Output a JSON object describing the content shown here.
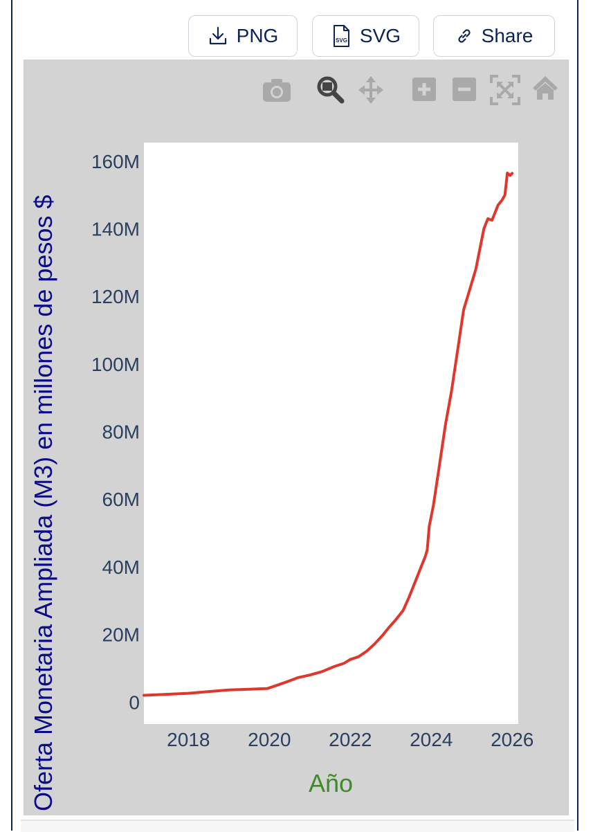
{
  "toolbar": {
    "png_label": "PNG",
    "svg_label": "SVG",
    "svg_icon_text": "SVG",
    "share_label": "Share"
  },
  "modebar": [
    "camera-icon",
    "zoom-icon",
    "pan-icon",
    "zoom-in-icon",
    "zoom-out-icon",
    "autoscale-icon",
    "home-icon"
  ],
  "colors": {
    "line": "#e0362b",
    "plot_bg": "#ffffff",
    "paper_bg": "#d3d3d3",
    "ylabel": "#0b0b8a",
    "xlabel": "#3f8a2a",
    "ticks": "#2a3f5f",
    "brand": "#0c2454"
  },
  "chart_data": {
    "type": "line",
    "title": "",
    "xlabel": "Año",
    "ylabel": "Oferta Monetaria Ampliada (M3) en millones de pesos $",
    "xlim": [
      2016.9,
      2026.15
    ],
    "ylim": [
      -6.5,
      165.5
    ],
    "xticks": [
      2018,
      2020,
      2022,
      2024,
      2026
    ],
    "yticks": [
      0,
      20,
      40,
      60,
      80,
      100,
      120,
      140,
      160
    ],
    "ytick_labels": [
      "0",
      "20M",
      "40M",
      "60M",
      "80M",
      "100M",
      "120M",
      "140M",
      "160M"
    ],
    "y_unit": "millones",
    "grid": false,
    "series": [
      {
        "x": [
          2016.9,
          2017.5,
          2018.0,
          2018.5,
          2019.0,
          2019.5,
          2019.95,
          2020.2,
          2020.5,
          2020.7,
          2021.0,
          2021.3,
          2021.6,
          2021.85,
          2022.0,
          2022.2,
          2022.4,
          2022.6,
          2022.8,
          2022.95,
          2023.1,
          2023.3,
          2023.45,
          2023.6,
          2023.75,
          2023.85,
          2023.9,
          2023.95,
          2024.05,
          2024.2,
          2024.35,
          2024.5,
          2024.65,
          2024.8,
          2024.95,
          2025.1,
          2025.3,
          2025.4,
          2025.5,
          2025.55,
          2025.65,
          2025.75,
          2025.82,
          2025.88,
          2025.95,
          2026.0
        ],
        "y": [
          2.0,
          2.3,
          2.6,
          3.1,
          3.6,
          3.8,
          4.0,
          5.0,
          6.3,
          7.2,
          8.0,
          9.0,
          10.5,
          11.5,
          12.6,
          13.4,
          15.0,
          17.2,
          19.8,
          22.0,
          24.0,
          27.0,
          31.0,
          35.5,
          40.0,
          43.0,
          45.0,
          52.0,
          58.0,
          70.0,
          82.0,
          92.0,
          104.0,
          116.0,
          122.0,
          128.0,
          140.0,
          143.0,
          142.5,
          144.0,
          147.0,
          148.5,
          150.0,
          156.5,
          155.8,
          156.4
        ]
      }
    ]
  }
}
